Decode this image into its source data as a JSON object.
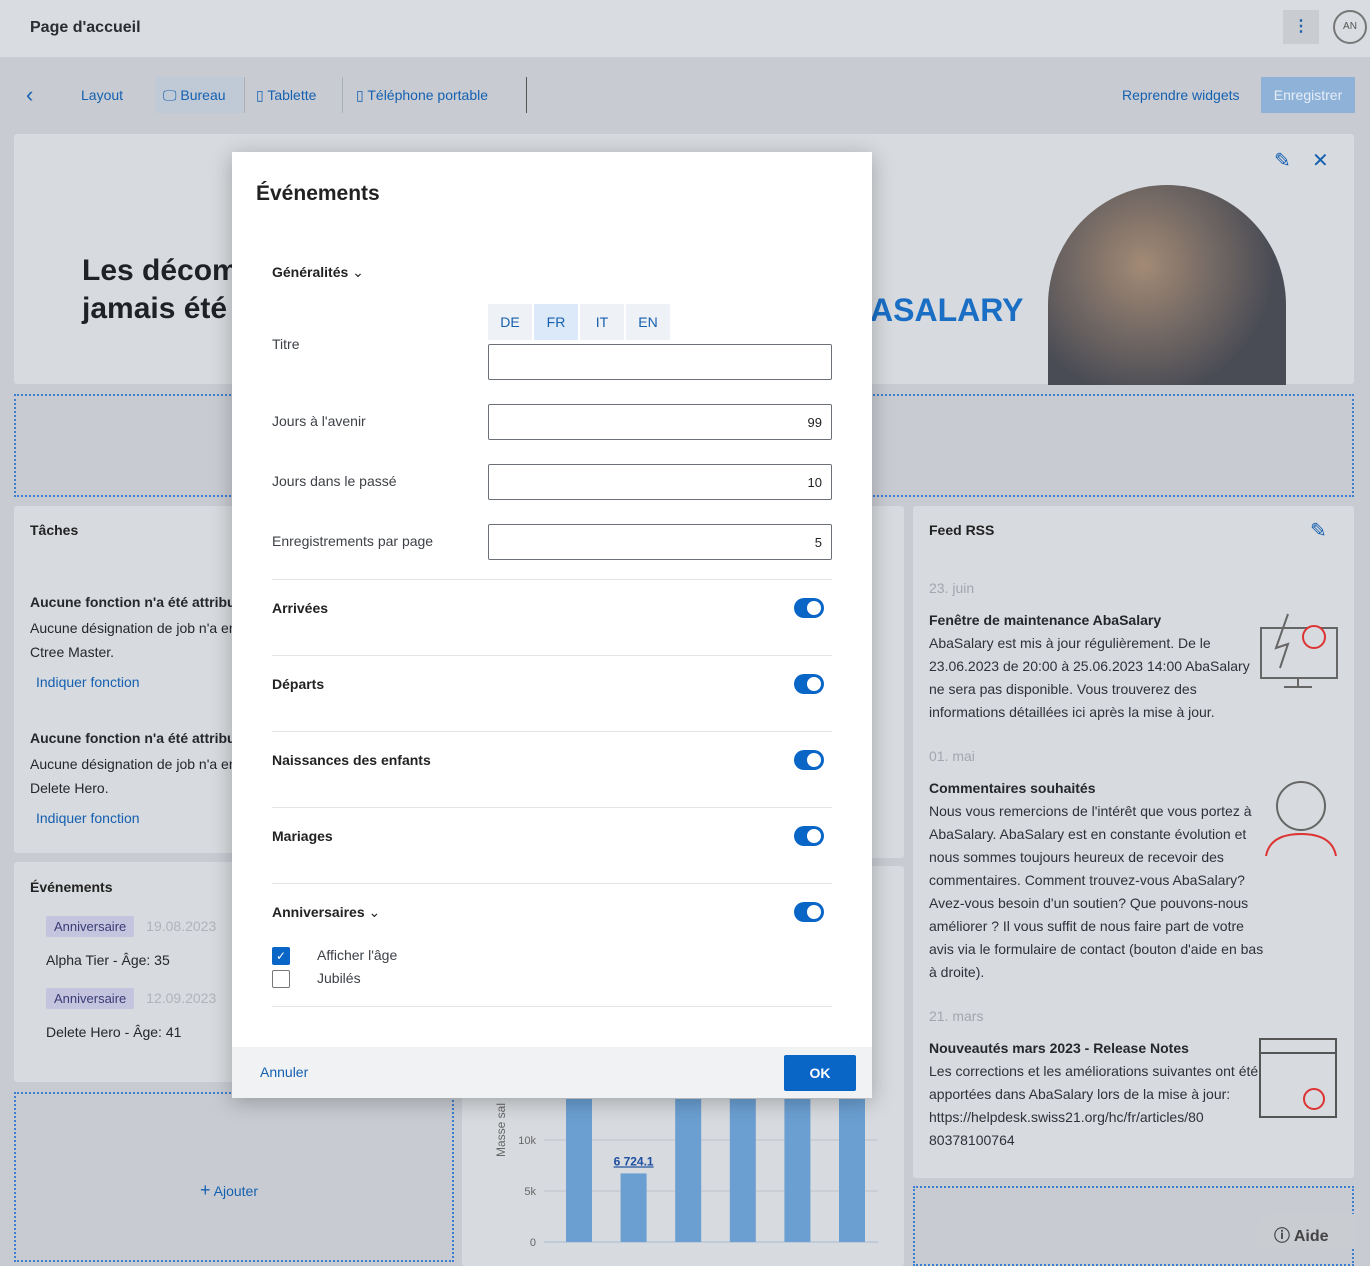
{
  "header": {
    "title": "Page d'accueil",
    "avatar": "AN",
    "menu_icon": "kebab-icon"
  },
  "toolbar": {
    "back": "‹",
    "layout": "Layout",
    "bureau": "Bureau",
    "tablette": "Tablette",
    "telephone": "Téléphone portable",
    "reprendre": "Reprendre widgets",
    "enregistrer": "Enregistrer"
  },
  "banner": {
    "line1": "Les décom",
    "line2": "jamais été",
    "brand": "ASALARY"
  },
  "taches": {
    "title": "Tâches",
    "items": [
      {
        "heading": "Aucune fonction n'a été attribuée",
        "text1": "Aucune désignation de job n'a en",
        "text2": "Ctree Master.",
        "link": "Indiquer fonction"
      },
      {
        "heading": "Aucune fonction n'a été attribuée",
        "text1": "Aucune désignation de job n'a en",
        "text2": "Delete Hero.",
        "link": "Indiquer fonction"
      }
    ]
  },
  "evenements": {
    "title": "Événements",
    "items": [
      {
        "tag": "Anniversaire",
        "date": "19.08.2023",
        "text": "Alpha Tier - Âge: 35"
      },
      {
        "tag": "Anniversaire",
        "date": "12.09.2023",
        "text": "Delete Hero - Âge: 41"
      }
    ]
  },
  "ajouter": "Ajouter",
  "rss": {
    "title": "Feed RSS",
    "items": [
      {
        "date": "23. juin",
        "title": "Fenêtre de maintenance AbaSalary",
        "body": "AbaSalary est mis à jour régulièrement. De le 23.06.2023 de 20:00 à 25.06.2023 14:00 AbaSalary ne sera pas disponible. Vous trouverez des informations détaillées ici après la mise à jour."
      },
      {
        "date": "01. mai",
        "title": "Commentaires souhaités",
        "body": "Nous vous remercions de l'intérêt que vous portez à AbaSalary. AbaSalary est en constante évolution et nous sommes toujours heureux de recevoir des commentaires. Comment trouvez-vous AbaSalary? Avez-vous besoin d'un soutien? Que pouvons-nous améliorer ? Il vous suffit de nous faire part de votre avis via le formulaire de contact (bouton d'aide en bas à droite)."
      },
      {
        "date": "21. mars",
        "title": "Nouveautés mars 2023 - Release Notes",
        "body": "Les corrections et les améliorations suivantes ont été apportées dans AbaSalary lors de la mise à jour:",
        "link": "https://helpdesk.swiss21.org/hc/fr/articles/8080378100764"
      }
    ]
  },
  "aide": "Aide",
  "chart_data": {
    "type": "bar",
    "ylabel": "Masse sal",
    "yticks": [
      "0",
      "5k",
      "10k"
    ],
    "ytick_values": [
      0,
      5000,
      10000
    ],
    "values": [
      null,
      6724.1,
      null,
      null,
      null,
      null
    ],
    "data_labels": [
      "",
      "6 724.1",
      "",
      "",
      "",
      ""
    ],
    "color": "#6b9fd2"
  },
  "modal": {
    "title": "Événements",
    "section": "Généralités",
    "langs": [
      "DE",
      "FR",
      "IT",
      "EN"
    ],
    "active_lang": "FR",
    "fields": [
      {
        "label": "Titre",
        "value": ""
      },
      {
        "label": "Jours à l'avenir",
        "value": "99"
      },
      {
        "label": "Jours dans le passé",
        "value": "10"
      },
      {
        "label": "Enregistrements par page",
        "value": "5"
      }
    ],
    "toggles": [
      {
        "label": "Arrivées",
        "on": true
      },
      {
        "label": "Départs",
        "on": true
      },
      {
        "label": "Naissances des enfants",
        "on": true
      },
      {
        "label": "Mariages",
        "on": true
      },
      {
        "label": "Anniversaires",
        "on": true
      }
    ],
    "checkboxes": [
      {
        "label": "Afficher l'âge",
        "checked": true
      },
      {
        "label": "Jubilés",
        "checked": false
      }
    ],
    "cancel": "Annuler",
    "ok": "OK"
  },
  "colors": {
    "accent": "#0a66c6",
    "link": "#1560b0"
  }
}
